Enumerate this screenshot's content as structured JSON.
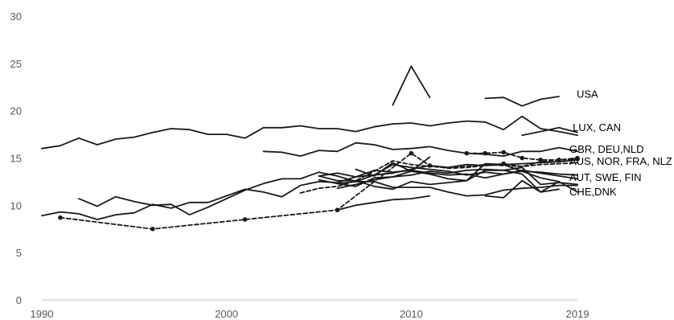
{
  "chart_data": {
    "type": "line",
    "title": "",
    "xlabel": "",
    "ylabel": "",
    "xlim": [
      1990,
      2019
    ],
    "ylim": [
      0,
      30
    ],
    "x_ticks": [
      "1990",
      "2000",
      "2010",
      "2019"
    ],
    "y_ticks": [
      "0",
      "5",
      "10",
      "15",
      "20",
      "25",
      "30"
    ],
    "grid": false,
    "legend": "none",
    "line_color": "#1a1a1a",
    "series_labels": [
      {
        "text": "USA",
        "y": 21.7
      },
      {
        "text": "LUX, CAN",
        "y": 18.2
      },
      {
        "text": "GBR, DEU,NLD",
        "y": 15.9
      },
      {
        "text": "AUS, NOR, FRA, NLZ",
        "y": 14.6
      },
      {
        "text": "AUT, SWE, FIN",
        "y": 12.9
      },
      {
        "text": "CHE,DNK",
        "y": 11.4
      }
    ],
    "series": [
      {
        "style": "solid",
        "points": [
          [
            1990,
            16.0
          ],
          [
            1991,
            16.3
          ],
          [
            1992,
            17.1
          ],
          [
            1993,
            16.4
          ],
          [
            1994,
            17.0
          ],
          [
            1995,
            17.2
          ],
          [
            1996,
            17.7
          ],
          [
            1997,
            18.1
          ],
          [
            1998,
            18.0
          ],
          [
            1999,
            17.5
          ],
          [
            2000,
            17.5
          ],
          [
            2001,
            17.1
          ],
          [
            2002,
            18.2
          ],
          [
            2003,
            18.2
          ],
          [
            2004,
            18.4
          ],
          [
            2005,
            18.1
          ],
          [
            2006,
            18.1
          ],
          [
            2007,
            17.8
          ],
          [
            2008,
            18.3
          ],
          [
            2009,
            18.6
          ],
          [
            2010,
            18.7
          ],
          [
            2011,
            18.4
          ],
          [
            2012,
            18.7
          ],
          [
            2013,
            18.9
          ],
          [
            2014,
            18.8
          ],
          [
            2015,
            18.0
          ],
          [
            2016,
            19.4
          ],
          [
            2017,
            18.1
          ],
          [
            2018,
            17.8
          ],
          [
            2019,
            17.4
          ]
        ]
      },
      {
        "style": "solid",
        "points": [
          [
            2009,
            20.6
          ],
          [
            2010,
            24.7
          ],
          [
            2011,
            21.4
          ]
        ]
      },
      {
        "style": "solid",
        "points": [
          [
            2014,
            21.3
          ],
          [
            2015,
            21.4
          ],
          [
            2016,
            20.5
          ],
          [
            2017,
            21.2
          ],
          [
            2018,
            21.5
          ]
        ]
      },
      {
        "style": "solid",
        "points": [
          [
            2016,
            17.4
          ],
          [
            2017,
            17.8
          ],
          [
            2018,
            18.2
          ],
          [
            2019,
            17.7
          ]
        ]
      },
      {
        "style": "solid",
        "points": [
          [
            2002,
            15.7
          ],
          [
            2003,
            15.6
          ],
          [
            2004,
            15.2
          ],
          [
            2005,
            15.8
          ],
          [
            2006,
            15.7
          ],
          [
            2007,
            16.6
          ],
          [
            2008,
            16.4
          ],
          [
            2009,
            15.9
          ],
          [
            2010,
            16.0
          ],
          [
            2011,
            16.2
          ],
          [
            2012,
            15.8
          ],
          [
            2013,
            15.5
          ],
          [
            2014,
            15.4
          ],
          [
            2015,
            15.2
          ],
          [
            2016,
            15.7
          ],
          [
            2017,
            15.7
          ],
          [
            2018,
            16.1
          ],
          [
            2019,
            15.7
          ]
        ]
      },
      {
        "style": "dashed",
        "markers": true,
        "points": [
          [
            2013,
            15.5
          ],
          [
            2014,
            15.5
          ],
          [
            2015,
            15.6
          ],
          [
            2016,
            15.0
          ],
          [
            2017,
            14.8
          ],
          [
            2018,
            14.8
          ],
          [
            2019,
            15.0
          ]
        ]
      },
      {
        "style": "solid",
        "points": [
          [
            1990,
            8.9
          ],
          [
            1991,
            9.3
          ],
          [
            1992,
            9.1
          ],
          [
            1993,
            8.5
          ],
          [
            1994,
            9.0
          ],
          [
            1995,
            9.2
          ],
          [
            1996,
            10.1
          ],
          [
            1997,
            9.7
          ],
          [
            1998,
            10.3
          ],
          [
            1999,
            10.3
          ],
          [
            2000,
            11.0
          ],
          [
            2001,
            11.7
          ],
          [
            2002,
            11.4
          ],
          [
            2003,
            10.9
          ],
          [
            2004,
            12.1
          ],
          [
            2005,
            12.5
          ],
          [
            2006,
            12.4
          ],
          [
            2007,
            13.0
          ],
          [
            2008,
            13.2
          ],
          [
            2009,
            13.4
          ],
          [
            2010,
            13.8
          ],
          [
            2011,
            14.2
          ],
          [
            2012,
            14.0
          ],
          [
            2013,
            14.3
          ],
          [
            2014,
            14.2
          ],
          [
            2015,
            14.3
          ],
          [
            2016,
            14.4
          ],
          [
            2017,
            14.5
          ],
          [
            2018,
            14.6
          ],
          [
            2019,
            14.8
          ]
        ]
      },
      {
        "style": "solid",
        "points": [
          [
            1992,
            10.7
          ],
          [
            1993,
            9.9
          ],
          [
            1994,
            10.9
          ],
          [
            1995,
            10.4
          ],
          [
            1996,
            10.0
          ],
          [
            1997,
            10.1
          ],
          [
            1998,
            9.0
          ],
          [
            1999,
            9.8
          ],
          [
            2000,
            10.7
          ],
          [
            2001,
            11.6
          ],
          [
            2002,
            12.3
          ],
          [
            2003,
            12.8
          ],
          [
            2004,
            12.8
          ],
          [
            2005,
            13.5
          ],
          [
            2006,
            13.1
          ],
          [
            2007,
            12.5
          ],
          [
            2008,
            13.2
          ],
          [
            2009,
            14.3
          ],
          [
            2010,
            14.0
          ],
          [
            2011,
            13.8
          ],
          [
            2012,
            13.6
          ],
          [
            2013,
            13.2
          ],
          [
            2014,
            13.5
          ],
          [
            2015,
            13.3
          ],
          [
            2016,
            13.6
          ],
          [
            2017,
            13.5
          ],
          [
            2018,
            13.3
          ],
          [
            2019,
            13.2
          ]
        ]
      },
      {
        "style": "dashed",
        "points": [
          [
            2004,
            11.3
          ],
          [
            2005,
            11.8
          ],
          [
            2006,
            12.0
          ],
          [
            2007,
            12.6
          ],
          [
            2008,
            13.6
          ],
          [
            2009,
            14.7
          ],
          [
            2010,
            14.3
          ],
          [
            2011,
            14.1
          ],
          [
            2012,
            14.0
          ],
          [
            2013,
            14.1
          ],
          [
            2014,
            14.3
          ],
          [
            2015,
            14.2
          ],
          [
            2016,
            14.1
          ],
          [
            2017,
            14.3
          ],
          [
            2018,
            14.4
          ],
          [
            2019,
            14.5
          ]
        ]
      },
      {
        "style": "dashed",
        "markers": true,
        "points": [
          [
            1991,
            8.7
          ],
          [
            1996,
            7.5
          ],
          [
            2001,
            8.5
          ],
          [
            2006,
            9.5
          ],
          [
            2010,
            15.5
          ],
          [
            2011,
            14.2
          ],
          [
            2012,
            13.9
          ],
          [
            2013,
            14.0
          ],
          [
            2014,
            14.2
          ],
          [
            2015,
            14.4
          ],
          [
            2016,
            14.1
          ],
          [
            2017,
            14.6
          ],
          [
            2018,
            14.8
          ],
          [
            2019,
            14.9
          ]
        ]
      },
      {
        "style": "solid",
        "points": [
          [
            2005,
            13.1
          ],
          [
            2006,
            13.4
          ],
          [
            2007,
            13.0
          ],
          [
            2008,
            13.7
          ],
          [
            2009,
            13.5
          ],
          [
            2010,
            13.7
          ],
          [
            2011,
            13.4
          ],
          [
            2012,
            13.2
          ],
          [
            2013,
            13.3
          ],
          [
            2014,
            12.9
          ],
          [
            2015,
            13.3
          ],
          [
            2016,
            13.7
          ],
          [
            2017,
            13.4
          ],
          [
            2018,
            13.1
          ],
          [
            2019,
            12.8
          ]
        ]
      },
      {
        "style": "solid",
        "points": [
          [
            2006,
            11.8
          ],
          [
            2007,
            12.2
          ],
          [
            2008,
            12.7
          ],
          [
            2009,
            13.0
          ],
          [
            2010,
            13.2
          ],
          [
            2011,
            13.6
          ],
          [
            2012,
            13.4
          ],
          [
            2013,
            13.7
          ],
          [
            2014,
            13.8
          ],
          [
            2015,
            13.7
          ],
          [
            2016,
            14.0
          ],
          [
            2017,
            12.2
          ],
          [
            2018,
            12.4
          ],
          [
            2019,
            12.2
          ]
        ]
      },
      {
        "style": "solid",
        "points": [
          [
            2007,
            13.8
          ],
          [
            2008,
            13.1
          ],
          [
            2009,
            14.5
          ],
          [
            2010,
            13.6
          ],
          [
            2011,
            15.1
          ]
        ]
      },
      {
        "style": "solid",
        "points": [
          [
            2005,
            13.1
          ],
          [
            2006,
            12.6
          ],
          [
            2007,
            12.6
          ],
          [
            2008,
            12.0
          ],
          [
            2009,
            11.7
          ],
          [
            2010,
            12.5
          ],
          [
            2011,
            12.2
          ],
          [
            2012,
            12.4
          ],
          [
            2013,
            12.6
          ],
          [
            2014,
            13.7
          ],
          [
            2015,
            13.7
          ],
          [
            2016,
            13.3
          ],
          [
            2017,
            11.4
          ],
          [
            2018,
            11.7
          ]
        ]
      },
      {
        "style": "solid",
        "points": [
          [
            2014,
            11.0
          ],
          [
            2015,
            10.8
          ],
          [
            2016,
            12.6
          ],
          [
            2017,
            11.4
          ],
          [
            2018,
            12.5
          ],
          [
            2019,
            11.4
          ]
        ]
      },
      {
        "style": "solid",
        "points": [
          [
            2005,
            12.7
          ],
          [
            2006,
            12.3
          ],
          [
            2007,
            12.0
          ],
          [
            2008,
            12.9
          ],
          [
            2009,
            13.0
          ],
          [
            2010,
            13.6
          ],
          [
            2011,
            13.3
          ],
          [
            2012,
            12.8
          ],
          [
            2013,
            12.6
          ],
          [
            2014,
            14.4
          ],
          [
            2015,
            14.3
          ],
          [
            2016,
            13.6
          ],
          [
            2017,
            12.9
          ],
          [
            2018,
            12.5
          ]
        ]
      },
      {
        "style": "solid",
        "points": [
          [
            2006,
            9.5
          ],
          [
            2007,
            10.0
          ],
          [
            2008,
            10.3
          ],
          [
            2009,
            10.6
          ],
          [
            2010,
            10.7
          ],
          [
            2011,
            11.0
          ]
        ]
      },
      {
        "style": "solid",
        "points": [
          [
            2006,
            12.3
          ],
          [
            2007,
            12.5
          ],
          [
            2008,
            12.5
          ],
          [
            2009,
            11.9
          ],
          [
            2010,
            11.9
          ],
          [
            2011,
            11.9
          ],
          [
            2012,
            11.4
          ],
          [
            2013,
            11.0
          ],
          [
            2014,
            11.1
          ],
          [
            2015,
            11.6
          ],
          [
            2016,
            11.8
          ],
          [
            2017,
            11.9
          ],
          [
            2018,
            12.1
          ],
          [
            2019,
            12.1
          ]
        ]
      }
    ]
  }
}
